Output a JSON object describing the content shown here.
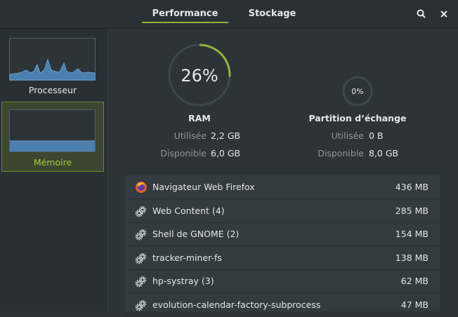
{
  "header": {
    "tabs": [
      "Performance",
      "Stockage"
    ]
  },
  "sidebar": {
    "items": [
      "Processeur",
      "Mémoire"
    ]
  },
  "ram": {
    "percent": "26%",
    "title": "RAM",
    "used_label": "Utilisée",
    "used": "2,2 GB",
    "available_label": "Disponible",
    "available": "6,0 GB"
  },
  "swap": {
    "percent": "0%",
    "title": "Partition d’échange",
    "used_label": "Utilisée",
    "used": "0 B",
    "available_label": "Disponible",
    "available": "8,0 GB"
  },
  "processes": [
    {
      "name": "Navigateur Web Firefox",
      "memory": "436 MB"
    },
    {
      "name": "Web Content (4)",
      "memory": "285 MB"
    },
    {
      "name": "Shell de GNOME (2)",
      "memory": "154 MB"
    },
    {
      "name": "tracker-miner-fs",
      "memory": "138 MB"
    },
    {
      "name": "hp-systray (3)",
      "memory": "62 MB"
    },
    {
      "name": "evolution-calendar-factory-subprocess",
      "memory": "47 MB"
    }
  ]
}
